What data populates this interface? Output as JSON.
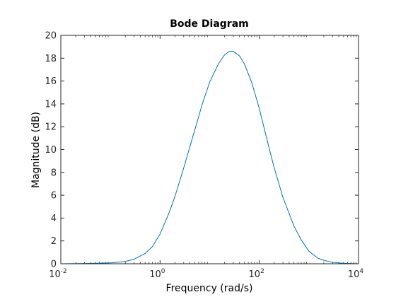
{
  "chart_data": {
    "type": "line",
    "title": "Bode Diagram",
    "xlabel": "Frequency  (rad/s)",
    "ylabel": "Magnitude (dB)",
    "x_scale": "log",
    "xlim": [
      0.01,
      10000
    ],
    "ylim": [
      0,
      20
    ],
    "x_ticks": [
      0.01,
      1,
      100,
      10000
    ],
    "x_tick_labels": [
      {
        "base": "10",
        "exp": "-2"
      },
      {
        "base": "10",
        "exp": "0"
      },
      {
        "base": "10",
        "exp": "2"
      },
      {
        "base": "10",
        "exp": "4"
      }
    ],
    "y_ticks": [
      0,
      2,
      4,
      6,
      8,
      10,
      12,
      14,
      16,
      18,
      20
    ],
    "y_tick_labels": [
      "0",
      "2",
      "4",
      "6",
      "8",
      "10",
      "12",
      "14",
      "16",
      "18",
      "20"
    ],
    "grid": false,
    "line_color": "#0072BD",
    "series": [
      {
        "x": [
          0.01,
          0.03,
          0.1,
          0.2,
          0.3,
          0.5,
          0.7,
          1,
          1.5,
          2,
          3,
          5,
          7,
          10,
          15,
          20,
          25,
          30,
          40,
          50,
          70,
          100,
          150,
          200,
          300,
          500,
          700,
          1000,
          1500,
          2000,
          3000,
          5000,
          10000
        ],
        "y": [
          0,
          0.02,
          0.08,
          0.2,
          0.4,
          0.9,
          1.5,
          2.6,
          4.4,
          5.9,
          8.4,
          11.7,
          13.9,
          15.9,
          17.5,
          18.3,
          18.6,
          18.6,
          18.2,
          17.5,
          15.9,
          13.6,
          10.5,
          8.4,
          5.8,
          3.3,
          2.1,
          1.1,
          0.5,
          0.3,
          0.12,
          0.04,
          0
        ]
      }
    ]
  }
}
